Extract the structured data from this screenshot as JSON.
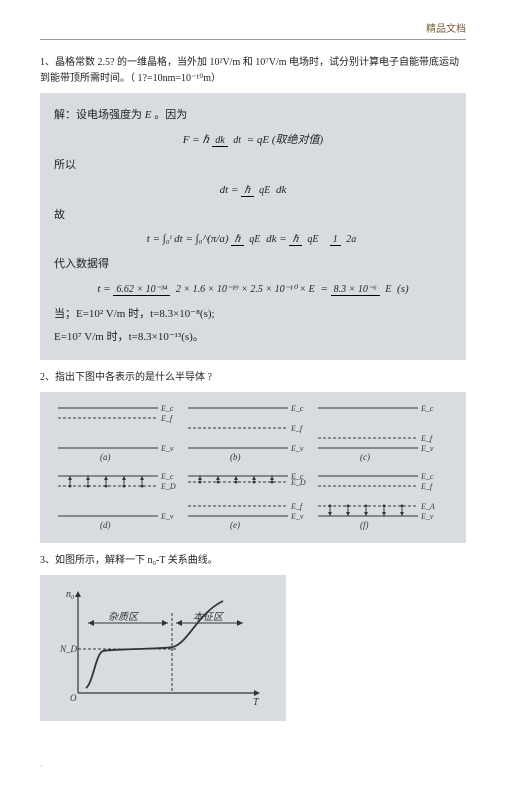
{
  "header": {
    "label": "精品文档"
  },
  "problem1": {
    "prefix": "1、晶格常数 2.5? 的一维晶格，当外加",
    "field1": "10²V/m",
    "mid1": "和 10⁷V/m",
    "tail": "电场时，试分别计算电子自能带底运动到能带顶所需时间。（ 1?=10nm=10⁻¹⁰m）"
  },
  "solution1": {
    "line1_pre": "解：设电场强度为",
    "line1_var": "E",
    "line1_post": "。因为",
    "eq1_lhs": "F = ℏ",
    "eq1_frac_num": "dk",
    "eq1_frac_den": "dt",
    "eq1_rhs": "= qE (取绝对值)",
    "line2": "所以",
    "eq2_lhs": "dt =",
    "eq2_frac_num": "ℏ",
    "eq2_frac_den": "qE",
    "eq2_post": "dk",
    "line3": "故",
    "eq3_lhs": "t = ∫₀ᵗ dt = ∫₀^(π/a)",
    "eq3_frac_num": "ℏ",
    "eq3_frac_den": "qE",
    "eq3_mid": "dk =",
    "eq3_frac2_num": "ℏ",
    "eq3_frac2_den": "qE",
    "eq3_frac3_num": "1",
    "eq3_frac3_den": "2a",
    "line4": "代入数据得",
    "eq4_lhs": "t =",
    "eq4_num": "6.62 × 10⁻³⁴",
    "eq4_den": "2 × 1.6 × 10⁻¹⁹ × 2.5 × 10⁻¹⁰ × E",
    "eq4_rhs_num": "8.3 × 10⁻⁶",
    "eq4_rhs_den": "E",
    "eq4_unit": "(s)",
    "line5": "当；E=10² V/m 时，t=8.3×10⁻⁸(s);",
    "line6": "E=10⁷ V/m 时，t=8.3×10⁻¹³(s)。"
  },
  "problem2": {
    "text": "2、指出下图中各表示的是什么半导体    ?"
  },
  "diagram2": {
    "labels": {
      "Ea": "E_a",
      "Ec": "E_c",
      "Ef": "E_f",
      "Ev": "E_v",
      "ED": "E_D",
      "EA": "E_A"
    },
    "panel_labels": [
      "(a)",
      "(b)",
      "(c)",
      "(d)",
      "(e)",
      "(f)"
    ],
    "line_color": "#333333",
    "dash_color": "#333333",
    "dot_color": "#333333",
    "arrow_color": "#333333",
    "bg": "#d8dce0"
  },
  "problem3": {
    "text": "3、如图所示，解释一下    n₀-T 关系曲线。"
  },
  "diagram3": {
    "ylabel": "n₀",
    "xlabel": "T",
    "region1": "杂质区",
    "region2": "本征区",
    "mark": "N_D",
    "axis_color": "#333333",
    "curve_color": "#333333",
    "dash_color": "#333333",
    "bg": "#d8dce0"
  }
}
